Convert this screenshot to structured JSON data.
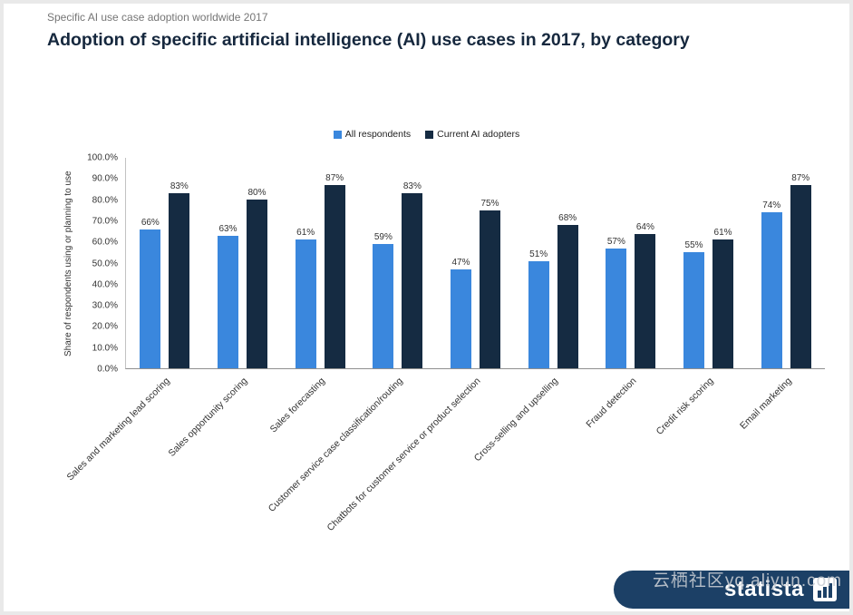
{
  "page": {
    "kicker": "Specific AI use case adoption worldwide 2017",
    "title": "Adoption of specific artificial intelligence (AI) use cases in 2017, by category"
  },
  "chart_data": {
    "type": "bar",
    "title": "Adoption of specific artificial intelligence (AI) use cases in 2017, by category",
    "ylabel": "Share of respondents using or planning to use",
    "ylim": [
      0,
      100
    ],
    "ytick_labels": [
      "100.0%",
      "90.0%",
      "80.0%",
      "70.0%",
      "60.0%",
      "50.0%",
      "40.0%",
      "30.0%",
      "20.0%",
      "10.0%",
      "0.0%"
    ],
    "grid": false,
    "legend_position": "top",
    "categories": [
      "Sales and marketing lead scoring",
      "Sales opportunity scoring",
      "Sales forecasting",
      "Customer service case classification/routing",
      "Chatbots for customer service or product selection",
      "Cross-selling and upselling",
      "Fraud detection",
      "Credit risk scoring",
      "Email marketing"
    ],
    "series": [
      {
        "name": "All respondents",
        "color": "#3a87dd",
        "values": [
          66,
          63,
          61,
          59,
          47,
          51,
          57,
          55,
          74
        ]
      },
      {
        "name": "Current AI adopters",
        "color": "#152b42",
        "values": [
          83,
          80,
          87,
          83,
          75,
          68,
          64,
          61,
          87
        ]
      }
    ],
    "value_label_format": "percent"
  },
  "footer": {
    "brand": "statista",
    "watermark": "云栖社区yq.aliyun.com"
  },
  "colors": {
    "accent_blue": "#3a87dd",
    "accent_navy": "#152b42",
    "banner": "#1c4066",
    "title_text": "#16283e"
  }
}
